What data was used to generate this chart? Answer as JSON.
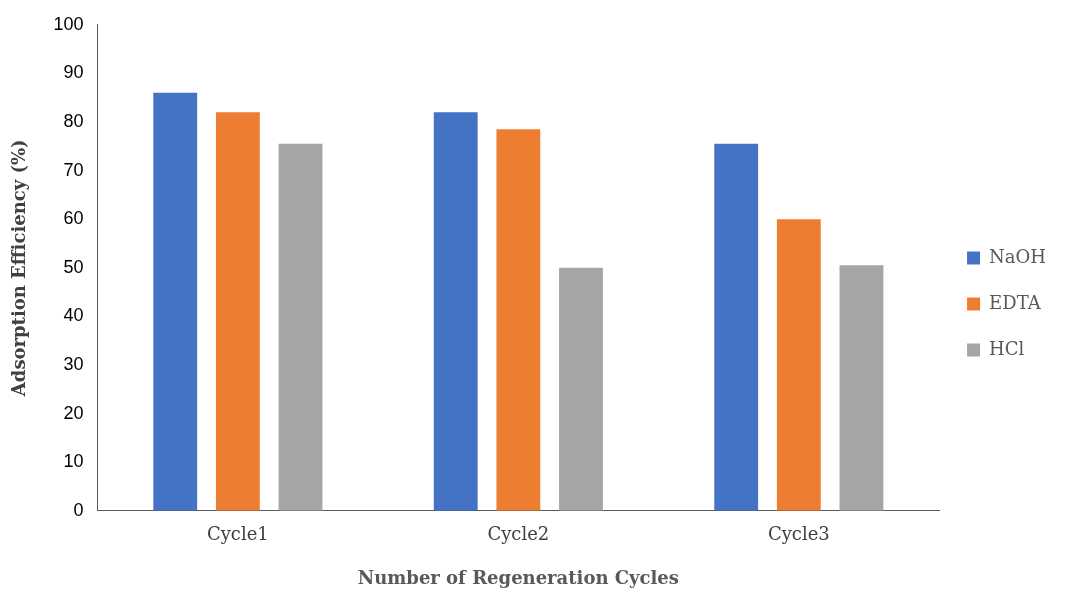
{
  "chart_data": {
    "type": "bar",
    "xlabel": "Number of Regeneration Cycles",
    "ylabel": "Adsorption Efficiency (%)",
    "categories": [
      "Cycle1",
      "Cycle2",
      "Cycle3"
    ],
    "series": [
      {
        "name": "NaOH",
        "color": "#4472c4",
        "values": [
          86,
          82,
          75.5
        ]
      },
      {
        "name": "EDTA",
        "color": "#ed7d31",
        "values": [
          82,
          78.5,
          60
        ]
      },
      {
        "name": "HCl",
        "color": "#a5a5a5",
        "values": [
          75.5,
          50,
          50.5
        ]
      }
    ],
    "ylim": [
      0,
      100
    ],
    "yticks": [
      0,
      10,
      20,
      30,
      40,
      50,
      60,
      70,
      80,
      90,
      100
    ],
    "grid": false,
    "legend": "right"
  }
}
